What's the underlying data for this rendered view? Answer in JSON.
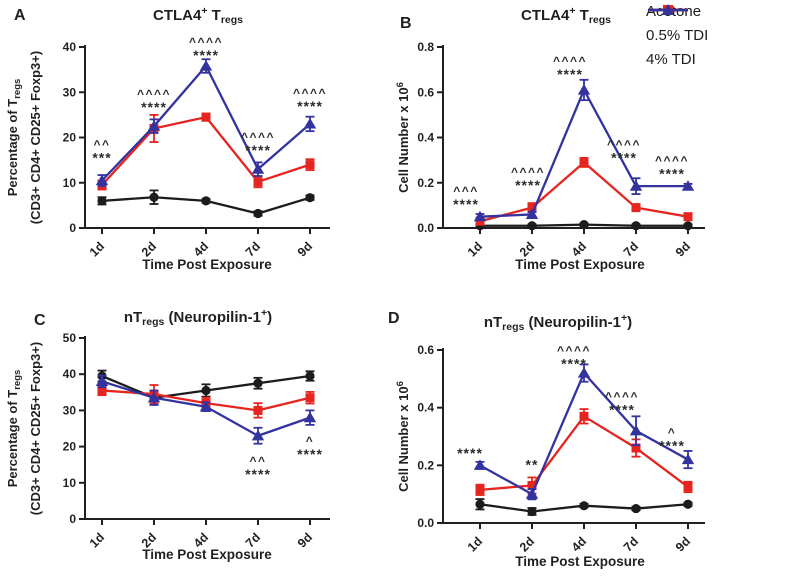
{
  "figure": {
    "xlabel": "Time Post Exposure",
    "categories": [
      "1d",
      "2d",
      "4d",
      "7d",
      "9d"
    ],
    "text_color": "#231f20"
  },
  "legend": {
    "items": [
      {
        "label": "Acetone",
        "marker": "circle",
        "color": "#1c1c1c"
      },
      {
        "label": "0.5% TDI",
        "marker": "square",
        "color": "#e62420"
      },
      {
        "label": "4% TDI",
        "marker": "triangle",
        "color": "#3333a0"
      }
    ]
  },
  "chart_data": [
    {
      "type": "line",
      "panel": "A",
      "title_parts": [
        {
          "t": "CTLA4"
        },
        {
          "t": "+",
          "s": "sup"
        },
        {
          "t": " T"
        },
        {
          "t": "regs",
          "s": "sub"
        }
      ],
      "ylabel_lines": [
        [
          {
            "t": "Percentage of T"
          },
          {
            "t": "regs",
            "s": "sub"
          }
        ],
        [
          {
            "t": "(CD3+ CD4+ CD25+ Foxp3+)"
          }
        ]
      ],
      "xlabel": "Time Post Exposure",
      "categories": [
        "1d",
        "2d",
        "4d",
        "7d",
        "9d"
      ],
      "ylim": [
        0,
        40
      ],
      "yticks": [
        0,
        10,
        20,
        30,
        40
      ],
      "ytick_labels": [
        "0",
        "10",
        "20",
        "30",
        "40"
      ],
      "series": [
        {
          "name": "Acetone",
          "color": "#1c1c1c",
          "marker": "circle",
          "values": [
            6.0,
            6.8,
            6.0,
            3.2,
            6.7
          ],
          "errors": [
            0.8,
            1.5,
            0.4,
            0.5,
            0.5
          ]
        },
        {
          "name": "0.5% TDI",
          "color": "#e62420",
          "marker": "square",
          "values": [
            9.5,
            22.0,
            24.5,
            10.2,
            14.0
          ],
          "errors": [
            1.0,
            3.0,
            0.8,
            1.2,
            1.2
          ]
        },
        {
          "name": "4% TDI",
          "color": "#3333a0",
          "marker": "triangle",
          "values": [
            10.5,
            22.5,
            35.8,
            13.0,
            23.0
          ],
          "errors": [
            1.2,
            1.5,
            1.5,
            1.5,
            1.6
          ]
        }
      ],
      "annotations": [
        {
          "cat": 0,
          "carets": "^^",
          "stars": "***",
          "y": 16.0,
          "dx": 0
        },
        {
          "cat": 1,
          "carets": "^^^^",
          "stars": "****",
          "y": 27.2,
          "dx": 0
        },
        {
          "cat": 2,
          "carets": "^^^^",
          "stars": "****",
          "y": 38.7,
          "dx": 0
        },
        {
          "cat": 3,
          "carets": "^^^^",
          "stars": "****",
          "y": 17.7,
          "dx": 0
        },
        {
          "cat": 4,
          "carets": "^^^^",
          "stars": "****",
          "y": 27.4,
          "dx": 0
        }
      ]
    },
    {
      "type": "line",
      "panel": "B",
      "title_parts": [
        {
          "t": "CTLA4"
        },
        {
          "t": "+",
          "s": "sup"
        },
        {
          "t": " T"
        },
        {
          "t": "regs",
          "s": "sub"
        }
      ],
      "ylabel_lines": [
        [
          {
            "t": "Cell Number x 10"
          },
          {
            "t": "6",
            "s": "sup"
          }
        ]
      ],
      "xlabel": "Time Post Exposure",
      "categories": [
        "1d",
        "2d",
        "4d",
        "7d",
        "9d"
      ],
      "ylim": [
        0,
        0.8
      ],
      "yticks": [
        0,
        0.2,
        0.4,
        0.6,
        0.8
      ],
      "ytick_labels": [
        "0.0",
        "0.2",
        "0.4",
        "0.6",
        "0.8"
      ],
      "series": [
        {
          "name": "Acetone",
          "color": "#1c1c1c",
          "marker": "circle",
          "values": [
            0.01,
            0.01,
            0.015,
            0.01,
            0.01
          ],
          "errors": [
            0.006,
            0.006,
            0.006,
            0.006,
            0.006
          ]
        },
        {
          "name": "0.5% TDI",
          "color": "#e62420",
          "marker": "square",
          "values": [
            0.03,
            0.09,
            0.29,
            0.09,
            0.05
          ],
          "errors": [
            0.01,
            0.02,
            0.02,
            0.015,
            0.01
          ]
        },
        {
          "name": "4% TDI",
          "color": "#3333a0",
          "marker": "triangle",
          "values": [
            0.05,
            0.06,
            0.61,
            0.185,
            0.185
          ],
          "errors": [
            0.012,
            0.012,
            0.045,
            0.035,
            0.01
          ]
        }
      ],
      "annotations": [
        {
          "cat": 0,
          "carets": "^^^",
          "stars": "****",
          "y": 0.115,
          "dx": -14
        },
        {
          "cat": 1,
          "carets": "^^^^",
          "stars": "****",
          "y": 0.2,
          "dx": -4
        },
        {
          "cat": 2,
          "carets": "^^^^",
          "stars": "****",
          "y": 0.69,
          "dx": -14
        },
        {
          "cat": 3,
          "carets": "^^^^",
          "stars": "****",
          "y": 0.32,
          "dx": -12
        },
        {
          "cat": 4,
          "carets": "^^^^",
          "stars": "****",
          "y": 0.25,
          "dx": -16
        }
      ]
    },
    {
      "type": "line",
      "panel": "C",
      "title_parts": [
        {
          "t": "nT"
        },
        {
          "t": "regs",
          "s": "sub"
        },
        {
          "t": " (Neuropilin-1"
        },
        {
          "t": "+",
          "s": "sup"
        },
        {
          "t": ")"
        }
      ],
      "ylabel_lines": [
        [
          {
            "t": "Percentage of T"
          },
          {
            "t": "regs",
            "s": "sub"
          }
        ],
        [
          {
            "t": "(CD3+ CD4+ CD25+ Foxp3+)"
          }
        ]
      ],
      "xlabel": "Time Post Exposure",
      "categories": [
        "1d",
        "2d",
        "4d",
        "7d",
        "9d"
      ],
      "ylim": [
        0,
        50
      ],
      "yticks": [
        0,
        10,
        20,
        30,
        40,
        50
      ],
      "ytick_labels": [
        "0",
        "10",
        "20",
        "30",
        "40",
        "50"
      ],
      "series": [
        {
          "name": "Acetone",
          "color": "#1c1c1c",
          "marker": "circle",
          "values": [
            39.5,
            33.5,
            35.5,
            37.5,
            39.5
          ],
          "errors": [
            1.5,
            1.8,
            1.7,
            1.5,
            1.3
          ]
        },
        {
          "name": "0.5% TDI",
          "color": "#e62420",
          "marker": "square",
          "values": [
            35.5,
            34.5,
            32.0,
            30.0,
            33.5
          ],
          "errors": [
            1.3,
            2.5,
            1.5,
            2.0,
            1.6
          ]
        },
        {
          "name": "4% TDI",
          "color": "#3333a0",
          "marker": "triangle",
          "values": [
            38.0,
            33.5,
            31.0,
            23.0,
            28.0
          ],
          "errors": [
            1.6,
            2.0,
            1.2,
            2.2,
            2.0
          ]
        }
      ],
      "annotations": [
        {
          "cat": 3,
          "carets": "^^",
          "stars": "****",
          "y": 13.0,
          "dx": 0
        },
        {
          "cat": 4,
          "carets": "^",
          "stars": "****",
          "y": 18.5,
          "dx": 0
        }
      ]
    },
    {
      "type": "line",
      "panel": "D",
      "title_parts": [
        {
          "t": "nT"
        },
        {
          "t": "regs",
          "s": "sub"
        },
        {
          "t": " (Neuropilin-1"
        },
        {
          "t": "+",
          "s": "sup"
        },
        {
          "t": ")"
        }
      ],
      "ylabel_lines": [
        [
          {
            "t": "Cell Number x 10"
          },
          {
            "t": "6",
            "s": "sup"
          }
        ]
      ],
      "xlabel": "Time Post Exposure",
      "categories": [
        "1d",
        "2d",
        "4d",
        "7d",
        "9d"
      ],
      "ylim": [
        0,
        0.6
      ],
      "yticks": [
        0,
        0.2,
        0.4,
        0.6
      ],
      "ytick_labels": [
        "0.0",
        "0.2",
        "0.4",
        "0.6"
      ],
      "series": [
        {
          "name": "Acetone",
          "color": "#1c1c1c",
          "marker": "circle",
          "values": [
            0.065,
            0.04,
            0.06,
            0.05,
            0.065
          ],
          "errors": [
            0.018,
            0.012,
            0.006,
            0.006,
            0.006
          ]
        },
        {
          "name": "0.5% TDI",
          "color": "#e62420",
          "marker": "square",
          "values": [
            0.115,
            0.13,
            0.37,
            0.26,
            0.125
          ],
          "errors": [
            0.018,
            0.028,
            0.025,
            0.03,
            0.018
          ]
        },
        {
          "name": "4% TDI",
          "color": "#3333a0",
          "marker": "triangle",
          "values": [
            0.2,
            0.1,
            0.52,
            0.32,
            0.22
          ],
          "errors": [
            0.012,
            0.018,
            0.03,
            0.05,
            0.03
          ]
        }
      ],
      "annotations": [
        {
          "cat": 0,
          "carets": "",
          "stars": "****",
          "y": 0.25,
          "dx": -10
        },
        {
          "cat": 1,
          "carets": "",
          "stars": "**",
          "y": 0.21,
          "dx": 0
        },
        {
          "cat": 2,
          "carets": "^^^^",
          "stars": "****",
          "y": 0.56,
          "dx": -10
        },
        {
          "cat": 3,
          "carets": "^^^^",
          "stars": "****",
          "y": 0.4,
          "dx": -14
        },
        {
          "cat": 4,
          "carets": "^",
          "stars": "****",
          "y": 0.275,
          "dx": -16
        }
      ]
    }
  ]
}
